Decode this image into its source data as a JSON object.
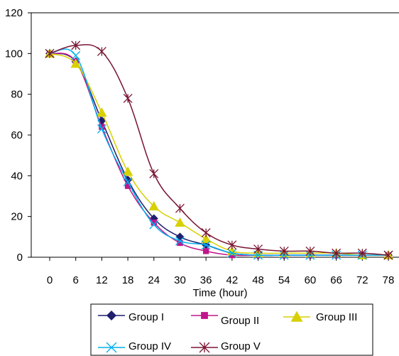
{
  "chart_data": {
    "type": "line",
    "title": "",
    "xlabel": "Time (hour)",
    "ylabel": "",
    "x": [
      0,
      6,
      12,
      18,
      24,
      30,
      36,
      42,
      48,
      54,
      60,
      66,
      72,
      78
    ],
    "xlim": [
      0,
      78
    ],
    "ylim": [
      0,
      120
    ],
    "yticks": [
      0,
      20,
      40,
      60,
      80,
      100,
      120
    ],
    "grid": false,
    "legend_position": "bottom",
    "series": [
      {
        "name": "Group I",
        "color": "#1f1f6e",
        "marker": "diamond",
        "values": [
          100,
          96,
          67,
          38,
          19,
          10,
          6,
          2,
          1,
          1,
          1,
          1,
          1,
          1
        ]
      },
      {
        "name": "Group II",
        "color": "#c0168a",
        "marker": "square",
        "values": [
          100,
          96,
          64,
          35,
          17,
          7,
          3,
          1,
          1,
          1,
          1,
          1,
          1,
          1
        ]
      },
      {
        "name": "Group III",
        "color": "#d8d000",
        "marker": "triangle",
        "values": [
          100,
          95,
          71,
          42,
          25,
          17,
          9,
          3,
          2,
          2,
          2,
          2,
          1,
          1
        ]
      },
      {
        "name": "Group IV",
        "color": "#00aeef",
        "marker": "x",
        "values": [
          100,
          99,
          63,
          37,
          16,
          8,
          6,
          2,
          1,
          1,
          1,
          1,
          1,
          1
        ]
      },
      {
        "name": "Group V",
        "color": "#7a1533",
        "marker": "star",
        "values": [
          100,
          104,
          101,
          78,
          41,
          24,
          12,
          6,
          4,
          3,
          3,
          2,
          2,
          1
        ]
      }
    ]
  }
}
